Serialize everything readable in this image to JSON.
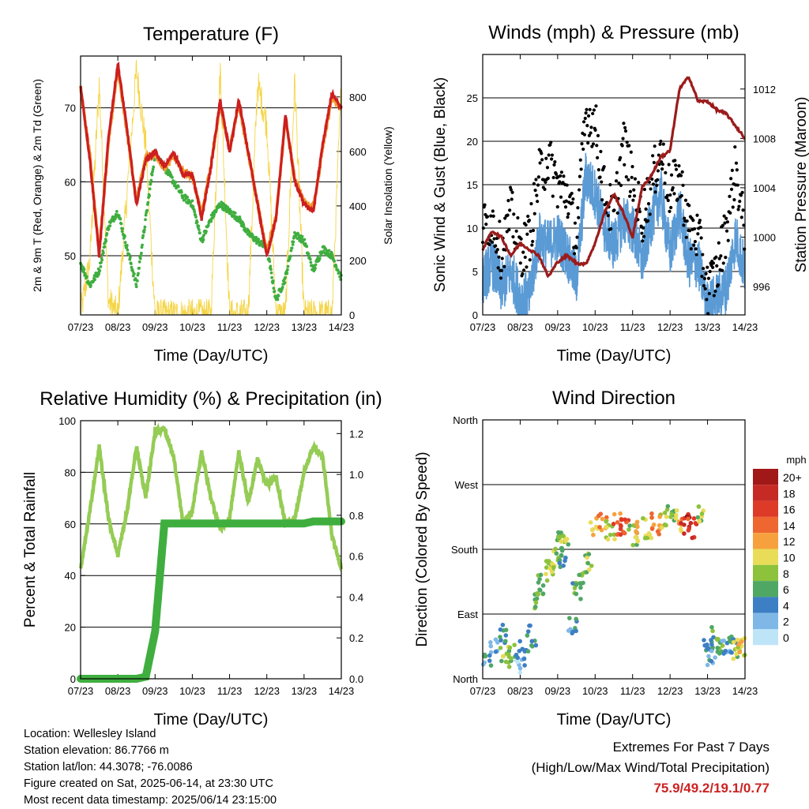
{
  "time_ticks": [
    "07/23",
    "08/23",
    "09/23",
    "10/23",
    "11/23",
    "12/23",
    "13/23",
    "14/23"
  ],
  "xlabel": "Time (Day/UTC)",
  "panels": {
    "temperature": {
      "title": "Temperature (F)",
      "ylabel_left": "2m & 9m T (Red, Orange) & 2m Td (Green)",
      "ylabel_right": "Solar Insolation (Yellow)",
      "left_ticks": [
        "50",
        "60",
        "70"
      ],
      "right_ticks": [
        "0",
        "200",
        "400",
        "600",
        "800"
      ]
    },
    "winds": {
      "title": "Winds (mph) & Pressure (mb)",
      "ylabel_left": "Sonic Wind & Gust (Blue, Black)",
      "ylabel_right": "Station Pressure (Maroon)",
      "left_ticks": [
        "0",
        "5",
        "10",
        "15",
        "20",
        "25"
      ],
      "right_ticks": [
        "996",
        "1000",
        "1004",
        "1008",
        "1012"
      ]
    },
    "humidity": {
      "title": "Relative Humidity (%) & Precipitation (in)",
      "ylabel_left": "Percent & Total Rainfall",
      "left_ticks": [
        "0",
        "20",
        "40",
        "60",
        "80",
        "100"
      ],
      "right_ticks": [
        "0.0",
        "0.2",
        "0.4",
        "0.6",
        "0.8",
        "1.0",
        "1.2"
      ]
    },
    "direction": {
      "title": "Wind Direction",
      "ylabel_left": "Direction (Colored By Speed)",
      "left_ticks": [
        "North",
        "East",
        "South",
        "West",
        "North"
      ],
      "legend_title": "mph",
      "legend_labels": [
        "20+",
        "18",
        "16",
        "14",
        "12",
        "10",
        "8",
        "6",
        "4",
        "2",
        "0"
      ],
      "legend_colors": [
        "#a01818",
        "#c62a24",
        "#de3a28",
        "#ee6630",
        "#f6a13e",
        "#e9dc58",
        "#8cc23c",
        "#4fa764",
        "#3d7fc4",
        "#7fb8e6",
        "#bee4f8"
      ]
    }
  },
  "info": {
    "location": "Location: Wellesley Island",
    "elevation": "Station elevation: 86.7766 m",
    "latlon": "Station lat/lon: 44.3078; -76.0086",
    "created": "Figure created on Sat, 2025-06-14, at 23:30 UTC",
    "recent": "Most recent data timestamp: 2025/06/14 23:15:00"
  },
  "extremes": {
    "title": "Extremes For Past 7 Days",
    "subtitle": "(High/Low/Max Wind/Total Precipitation)",
    "values": "75.9/49.2/19.1/0.77"
  },
  "colors": {
    "temp_2m": "#cc1f1f",
    "temp_9m": "#f29a33",
    "dewpoint": "#3fae3f",
    "insolation": "#f5d547",
    "wind": "#5b9bd5",
    "gust": "#000000",
    "pressure": "#9b1b1b",
    "rh": "#95cc55",
    "rain": "#3fae3f"
  },
  "chart_data": [
    {
      "type": "line",
      "title": "Temperature (F)",
      "xlabel": "Time (Day/UTC)",
      "ylabel": "2m & 9m T (Red, Orange) & 2m Td (Green)",
      "ylabel2": "Solar Insolation (Yellow)",
      "xlim": [
        0,
        7
      ],
      "ylim": [
        42,
        77
      ],
      "ylim2": [
        0,
        950
      ],
      "x": [
        0,
        0.25,
        0.5,
        0.75,
        1,
        1.25,
        1.5,
        1.75,
        2,
        2.25,
        2.5,
        2.75,
        3,
        3.25,
        3.5,
        3.75,
        4,
        4.25,
        4.5,
        4.75,
        5,
        5.25,
        5.5,
        5.75,
        6,
        6.25,
        6.5,
        6.75,
        7
      ],
      "series": [
        {
          "name": "2m T",
          "axis": "left",
          "values": [
            73,
            63,
            50,
            66,
            76,
            67,
            57,
            63,
            64,
            62,
            64,
            61,
            61,
            55,
            62,
            71,
            64,
            71,
            64,
            57,
            50,
            55,
            69,
            60,
            57,
            56,
            65,
            72,
            70
          ]
        },
        {
          "name": "9m T",
          "axis": "left",
          "values": [
            72.6,
            63.5,
            50.6,
            65.4,
            75.3,
            66.5,
            57.4,
            63.4,
            63.6,
            61.8,
            63.6,
            61.4,
            60.7,
            55.5,
            62.3,
            70.5,
            64.2,
            70.6,
            63.8,
            57.2,
            50.5,
            55.3,
            68.5,
            60.4,
            57.5,
            56.3,
            64.6,
            71.5,
            69.7
          ]
        },
        {
          "name": "2m Td",
          "axis": "left",
          "values": [
            49,
            46,
            48,
            54,
            56,
            51,
            46,
            55,
            64,
            62,
            60,
            58,
            57,
            52,
            55,
            57,
            56,
            55,
            53,
            52,
            51,
            44,
            47,
            53,
            52,
            48,
            51,
            50,
            47
          ]
        },
        {
          "name": "Solar Insolation",
          "axis": "right",
          "values": [
            0,
            200,
            850,
            50,
            0,
            450,
            900,
            620,
            0,
            0,
            0,
            0,
            0,
            0,
            0,
            900,
            0,
            0,
            0,
            850,
            700,
            0,
            0,
            860,
            0,
            0,
            0,
            0,
            850
          ]
        }
      ]
    },
    {
      "type": "line",
      "title": "Winds (mph) & Pressure (mb)",
      "xlabel": "Time (Day/UTC)",
      "ylabel": "Sonic Wind & Gust (Blue, Black)",
      "ylabel2": "Station Pressure (Maroon)",
      "xlim": [
        0,
        7
      ],
      "ylim": [
        0,
        30
      ],
      "ylim2": [
        993.7,
        1014.8
      ],
      "x": [
        0,
        0.25,
        0.5,
        0.75,
        1,
        1.25,
        1.5,
        1.75,
        2,
        2.25,
        2.5,
        2.75,
        3,
        3.25,
        3.5,
        3.75,
        4,
        4.25,
        4.5,
        4.75,
        5,
        5.25,
        5.5,
        5.75,
        6,
        6.25,
        6.5,
        6.75,
        7
      ],
      "series": [
        {
          "name": "Sonic Wind",
          "axis": "left",
          "values": [
            4,
            6,
            3,
            5,
            2,
            2,
            9,
            8,
            9,
            7,
            4,
            16,
            14,
            10,
            8,
            11,
            10,
            6,
            11,
            14,
            7,
            12,
            6,
            6,
            1,
            2,
            3,
            9,
            5
          ]
        },
        {
          "name": "Gust",
          "axis": "left",
          "values": [
            10,
            11,
            7,
            12,
            7,
            9,
            16,
            18,
            15,
            14,
            9,
            23,
            22,
            14,
            11,
            20,
            15,
            11,
            15,
            19,
            14,
            16,
            10,
            9,
            3,
            5,
            10,
            17,
            9
          ]
        },
        {
          "name": "Station Pressure",
          "axis": "right",
          "values": [
            999,
            1000.5,
            1000,
            998.5,
            999.5,
            999,
            998.5,
            996.8,
            998,
            998.5,
            997.9,
            997.8,
            999.5,
            1002,
            1003.5,
            1002,
            1000,
            1004,
            1005,
            1006.5,
            1007,
            1012,
            1013,
            1011,
            1011,
            1010.3,
            1010,
            1009,
            1008
          ]
        }
      ]
    },
    {
      "type": "line",
      "title": "Relative Humidity (%) & Precipitation (in)",
      "xlabel": "Time (Day/UTC)",
      "ylabel": "Percent & Total Rainfall",
      "xlim": [
        0,
        7
      ],
      "ylim": [
        0,
        100
      ],
      "ylim2": [
        0,
        1.263
      ],
      "x": [
        0,
        0.25,
        0.5,
        0.75,
        1,
        1.25,
        1.5,
        1.75,
        2,
        2.25,
        2.5,
        2.75,
        3,
        3.25,
        3.5,
        3.75,
        4,
        4.25,
        4.5,
        4.75,
        5,
        5.25,
        5.5,
        5.75,
        6,
        6.25,
        6.5,
        6.75,
        7
      ],
      "series": [
        {
          "name": "Relative Humidity",
          "axis": "left",
          "values": [
            42,
            65,
            90,
            62,
            48,
            65,
            90,
            70,
            96,
            97,
            86,
            60,
            65,
            88,
            70,
            58,
            62,
            88,
            68,
            85,
            75,
            78,
            60,
            62,
            80,
            90,
            86,
            55,
            43
          ]
        },
        {
          "name": "Total Rainfall",
          "axis": "right",
          "values": [
            0,
            0,
            0,
            0,
            0,
            0,
            0,
            0.01,
            0.23,
            0.76,
            0.76,
            0.76,
            0.76,
            0.76,
            0.76,
            0.76,
            0.76,
            0.76,
            0.76,
            0.76,
            0.76,
            0.76,
            0.76,
            0.76,
            0.76,
            0.77,
            0.77,
            0.77,
            0.77
          ]
        }
      ]
    },
    {
      "type": "scatter",
      "title": "Wind Direction",
      "xlabel": "Time (Day/UTC)",
      "ylabel": "Direction (Colored By Speed)",
      "xlim": [
        0,
        7
      ],
      "ylim": [
        0,
        360
      ],
      "y_ticks": [
        "North",
        "East",
        "South",
        "West",
        "North"
      ],
      "points": [
        [
          0.1,
          30,
          4
        ],
        [
          0.3,
          40,
          3
        ],
        [
          0.5,
          60,
          5
        ],
        [
          0.6,
          30,
          8
        ],
        [
          0.8,
          35,
          7
        ],
        [
          1.0,
          20,
          2
        ],
        [
          1.1,
          40,
          4
        ],
        [
          1.3,
          60,
          5
        ],
        [
          1.5,
          110,
          7
        ],
        [
          1.6,
          130,
          8
        ],
        [
          1.8,
          150,
          9
        ],
        [
          1.9,
          165,
          8
        ],
        [
          2.0,
          190,
          7
        ],
        [
          2.1,
          170,
          5
        ],
        [
          2.2,
          200,
          8
        ],
        [
          2.4,
          70,
          4
        ],
        [
          2.5,
          120,
          6
        ],
        [
          2.6,
          140,
          7
        ],
        [
          2.8,
          160,
          8
        ],
        [
          3.0,
          210,
          10
        ],
        [
          3.2,
          215,
          12
        ],
        [
          3.4,
          205,
          9
        ],
        [
          3.6,
          215,
          14
        ],
        [
          3.8,
          210,
          16
        ],
        [
          4.0,
          200,
          7
        ],
        [
          4.2,
          205,
          11
        ],
        [
          4.4,
          210,
          9
        ],
        [
          4.6,
          215,
          13
        ],
        [
          4.8,
          225,
          10
        ],
        [
          5.0,
          235,
          7
        ],
        [
          5.2,
          220,
          12
        ],
        [
          5.4,
          215,
          18
        ],
        [
          5.6,
          210,
          16
        ],
        [
          5.8,
          230,
          8
        ],
        [
          6.0,
          40,
          5
        ],
        [
          6.1,
          30,
          4
        ],
        [
          6.2,
          60,
          6
        ],
        [
          6.3,
          50,
          7
        ],
        [
          6.5,
          40,
          3
        ],
        [
          6.7,
          45,
          5
        ],
        [
          6.8,
          40,
          9
        ],
        [
          6.9,
          45,
          10
        ]
      ]
    }
  ]
}
